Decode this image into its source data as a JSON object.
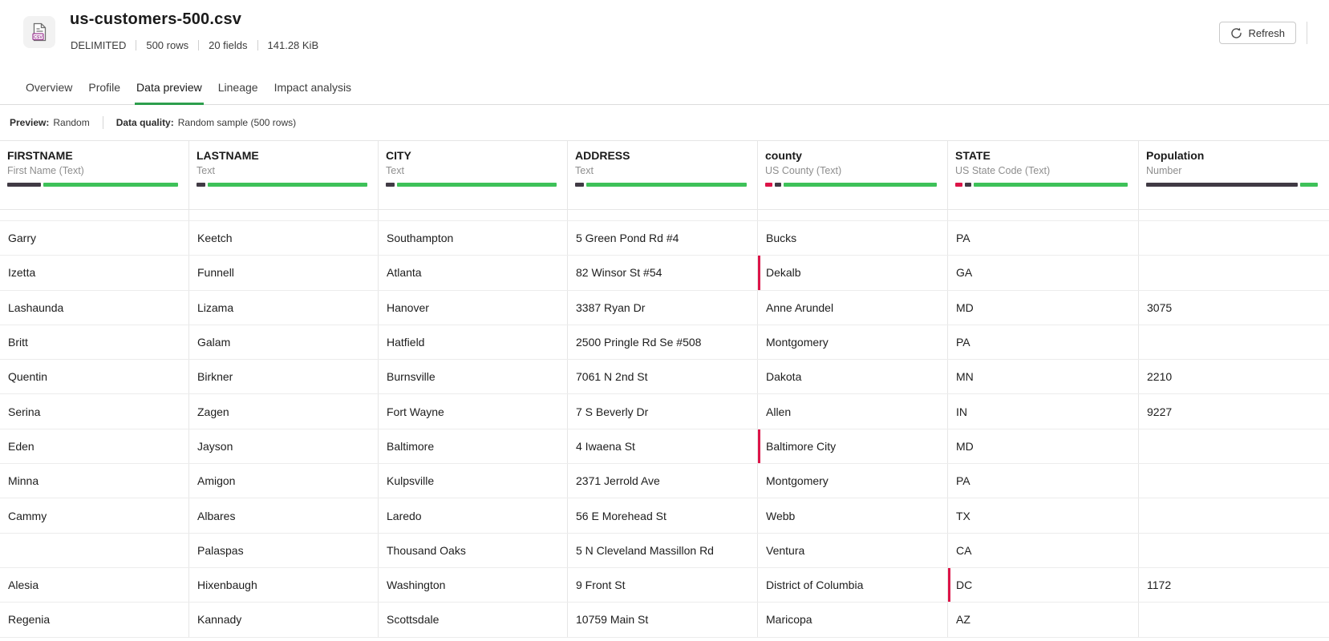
{
  "header": {
    "title": "us-customers-500.csv",
    "meta": [
      "DELIMITED",
      "500 rows",
      "20 fields",
      "141.28 KiB"
    ],
    "refresh_button": "Refresh",
    "file_icon_label": "CSV"
  },
  "tabs": [
    {
      "label": "Overview",
      "active": false
    },
    {
      "label": "Profile",
      "active": false
    },
    {
      "label": "Data preview",
      "active": true
    },
    {
      "label": "Lineage",
      "active": false
    },
    {
      "label": "Impact analysis",
      "active": false
    }
  ],
  "preview_bar": {
    "preview_label": "Preview:",
    "preview_value": "Random",
    "quality_label": "Data quality:",
    "quality_value": "Random sample (500 rows)"
  },
  "table": {
    "columns": [
      {
        "name": "FIRSTNAME",
        "type": "First Name (Text)",
        "quality": [
          {
            "kind": "empty",
            "pct": 19.5
          },
          {
            "kind": "valid",
            "pct": 79
          }
        ]
      },
      {
        "name": "LASTNAME",
        "type": "Text",
        "quality": [
          {
            "kind": "empty",
            "pct": 5
          },
          {
            "kind": "valid",
            "pct": 93.5
          }
        ]
      },
      {
        "name": "CITY",
        "type": "Text",
        "quality": [
          {
            "kind": "empty",
            "pct": 5
          },
          {
            "kind": "valid",
            "pct": 93.5
          }
        ]
      },
      {
        "name": "ADDRESS",
        "type": "Text",
        "quality": [
          {
            "kind": "empty",
            "pct": 5
          },
          {
            "kind": "valid",
            "pct": 93.5
          }
        ]
      },
      {
        "name": "county",
        "type": "US County (Text)",
        "quality": [
          {
            "kind": "invalid",
            "pct": 4
          },
          {
            "kind": "empty",
            "pct": 4
          },
          {
            "kind": "valid",
            "pct": 89.5
          }
        ]
      },
      {
        "name": "STATE",
        "type": "US State Code (Text)",
        "quality": [
          {
            "kind": "invalid",
            "pct": 4
          },
          {
            "kind": "empty",
            "pct": 4
          },
          {
            "kind": "valid",
            "pct": 89.5
          }
        ]
      },
      {
        "name": "Population",
        "type": "Number",
        "quality": [
          {
            "kind": "empty",
            "pct": 88
          },
          {
            "kind": "valid",
            "pct": 10
          }
        ]
      }
    ],
    "rows": [
      {
        "cells": [
          "Garry",
          "Keetch",
          "Southampton",
          "5 Green Pond Rd #4",
          "Bucks",
          "PA",
          ""
        ],
        "invalid": []
      },
      {
        "cells": [
          "Izetta",
          "Funnell",
          "Atlanta",
          "82 Winsor St #54",
          "Dekalb",
          "GA",
          ""
        ],
        "invalid": [
          4
        ]
      },
      {
        "cells": [
          "Lashaunda",
          "Lizama",
          "Hanover",
          "3387 Ryan Dr",
          "Anne Arundel",
          "MD",
          "3075"
        ],
        "invalid": []
      },
      {
        "cells": [
          "Britt",
          "Galam",
          "Hatfield",
          "2500 Pringle Rd Se #508",
          "Montgomery",
          "PA",
          ""
        ],
        "invalid": []
      },
      {
        "cells": [
          "Quentin",
          "Birkner",
          "Burnsville",
          "7061 N 2nd St",
          "Dakota",
          "MN",
          "2210"
        ],
        "invalid": []
      },
      {
        "cells": [
          "Serina",
          "Zagen",
          "Fort Wayne",
          "7 S Beverly Dr",
          "Allen",
          "IN",
          "9227"
        ],
        "invalid": []
      },
      {
        "cells": [
          "Eden",
          "Jayson",
          "Baltimore",
          "4 Iwaena St",
          "Baltimore City",
          "MD",
          ""
        ],
        "invalid": [
          4
        ]
      },
      {
        "cells": [
          "Minna",
          "Amigon",
          "Kulpsville",
          "2371 Jerrold Ave",
          "Montgomery",
          "PA",
          ""
        ],
        "invalid": []
      },
      {
        "cells": [
          "Cammy",
          "Albares",
          "Laredo",
          "56 E Morehead St",
          "Webb",
          "TX",
          ""
        ],
        "invalid": []
      },
      {
        "cells": [
          "",
          "Palaspas",
          "Thousand Oaks",
          "5 N Cleveland Massillon Rd",
          "Ventura",
          "CA",
          ""
        ],
        "invalid": []
      },
      {
        "cells": [
          "Alesia",
          "Hixenbaugh",
          "Washington",
          "9 Front St",
          "District of Columbia",
          "DC",
          "1172"
        ],
        "invalid": [
          5
        ]
      },
      {
        "cells": [
          "Regenia",
          "Kannady",
          "Scottsdale",
          "10759 Main St",
          "Maricopa",
          "AZ",
          ""
        ],
        "invalid": []
      }
    ]
  },
  "colors": {
    "valid": "#3ec159",
    "empty": "#403a44",
    "invalid": "#dc1448",
    "invalid_cell_border": "#dc1448",
    "tab_active": "#2d9e4d",
    "csv_icon": "#9d3a94"
  }
}
